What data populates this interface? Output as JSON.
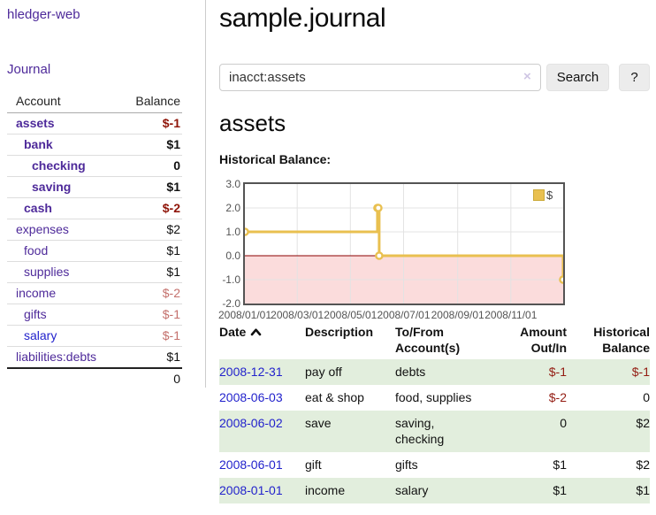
{
  "app": {
    "brand": "hledger-web",
    "nav_journal": "Journal"
  },
  "colors": {
    "link_purple": "#4e2a9a",
    "link_blue": "#2222cc",
    "negative_bold": "#8f1408",
    "negative_light": "#c4706c",
    "register_negative": "#931c12",
    "row_green": "#e2eedd",
    "series_gold": "#e9c050",
    "zero_line": "#8b0000",
    "negative_fill": "#fbdcdc"
  },
  "sidebar": {
    "accounts_table": {
      "headers": [
        "Account",
        "Balance"
      ],
      "rows": [
        {
          "account": "assets",
          "depth": 0,
          "bold": true,
          "link": "purple",
          "balance": "$-1",
          "balance_style": "neg-bold"
        },
        {
          "account": "bank",
          "depth": 1,
          "bold": true,
          "link": "purple",
          "balance": "$1",
          "balance_style": "pos-bold"
        },
        {
          "account": "checking",
          "depth": 2,
          "bold": true,
          "link": "purple",
          "balance": "0",
          "balance_style": "pos-bold"
        },
        {
          "account": "saving",
          "depth": 2,
          "bold": true,
          "link": "purple",
          "balance": "$1",
          "balance_style": "pos-bold"
        },
        {
          "account": "cash",
          "depth": 1,
          "bold": true,
          "link": "purple",
          "balance": "$-2",
          "balance_style": "neg-bold"
        },
        {
          "account": "expenses",
          "depth": 0,
          "bold": false,
          "link": "purple",
          "balance": "$2",
          "balance_style": "pos"
        },
        {
          "account": "food",
          "depth": 1,
          "bold": false,
          "link": "purple",
          "balance": "$1",
          "balance_style": "pos"
        },
        {
          "account": "supplies",
          "depth": 1,
          "bold": false,
          "link": "purple",
          "balance": "$1",
          "balance_style": "pos"
        },
        {
          "account": "income",
          "depth": 0,
          "bold": false,
          "link": "purple",
          "balance": "$-2",
          "balance_style": "neg-light"
        },
        {
          "account": "gifts",
          "depth": 1,
          "bold": false,
          "link": "purple",
          "balance": "$-1",
          "balance_style": "neg-light"
        },
        {
          "account": "salary",
          "depth": 1,
          "bold": false,
          "link": "blue",
          "balance": "$-1",
          "balance_style": "neg-light"
        },
        {
          "account": "liabilities:debts",
          "depth": 0,
          "bold": false,
          "link": "purple",
          "balance": "$1",
          "balance_style": "pos"
        }
      ],
      "total": "0"
    }
  },
  "header": {
    "title": "sample.journal"
  },
  "search": {
    "value": "inacct:assets",
    "clear_label": "×",
    "button": "Search",
    "help_button": "?"
  },
  "account_page": {
    "title": "assets",
    "chart_label": "Historical Balance:"
  },
  "chart_data": {
    "type": "line",
    "step": true,
    "title": "Historical Balance",
    "x_type": "date",
    "x_range": [
      "2008-01-01",
      "2008-12-31"
    ],
    "ylim": [
      -2,
      3
    ],
    "yticks": [
      {
        "v": 3,
        "label": "3.0"
      },
      {
        "v": 2,
        "label": "2.0"
      },
      {
        "v": 1,
        "label": "1.0"
      },
      {
        "v": 0,
        "label": "0.0"
      },
      {
        "v": -1,
        "label": "-1.0"
      },
      {
        "v": -2,
        "label": "-2.0"
      }
    ],
    "xticks": [
      {
        "date": "2008-01-01",
        "label": "2008/01/01"
      },
      {
        "date": "2008-03-01",
        "label": "2008/03/01"
      },
      {
        "date": "2008-05-01",
        "label": "2008/05/01"
      },
      {
        "date": "2008-07-01",
        "label": "2008/07/01"
      },
      {
        "date": "2008-09-01",
        "label": "2008/09/01"
      },
      {
        "date": "2008-11-01",
        "label": "2008/11/01"
      }
    ],
    "series": [
      {
        "name": "$",
        "color": "#e9c050",
        "points": [
          {
            "x": "2008-01-01",
            "y": 1
          },
          {
            "x": "2008-06-01",
            "y": 2
          },
          {
            "x": "2008-06-02",
            "y": 2
          },
          {
            "x": "2008-06-03",
            "y": 0
          },
          {
            "x": "2008-12-31",
            "y": -1
          }
        ]
      }
    ],
    "grid": true,
    "legend_position": "top-right"
  },
  "register": {
    "headers": [
      "Date",
      "Description",
      "To/From Account(s)",
      "Amount Out/In",
      "Historical Balance"
    ],
    "rows": [
      {
        "date": "2008-12-31",
        "description": "pay off",
        "accounts": "debts",
        "amount": "$-1",
        "amount_neg": true,
        "balance": "$-1",
        "balance_neg": true
      },
      {
        "date": "2008-06-03",
        "description": "eat & shop",
        "accounts": "food, supplies",
        "amount": "$-2",
        "amount_neg": true,
        "balance": "0",
        "balance_neg": false
      },
      {
        "date": "2008-06-02",
        "description": "save",
        "accounts": "saving,\nchecking",
        "amount": "0",
        "amount_neg": false,
        "balance": "$2",
        "balance_neg": false
      },
      {
        "date": "2008-06-01",
        "description": "gift",
        "accounts": "gifts",
        "amount": "$1",
        "amount_neg": false,
        "balance": "$2",
        "balance_neg": false
      },
      {
        "date": "2008-01-01",
        "description": "income",
        "accounts": "salary",
        "amount": "$1",
        "amount_neg": false,
        "balance": "$1",
        "balance_neg": false
      }
    ]
  }
}
